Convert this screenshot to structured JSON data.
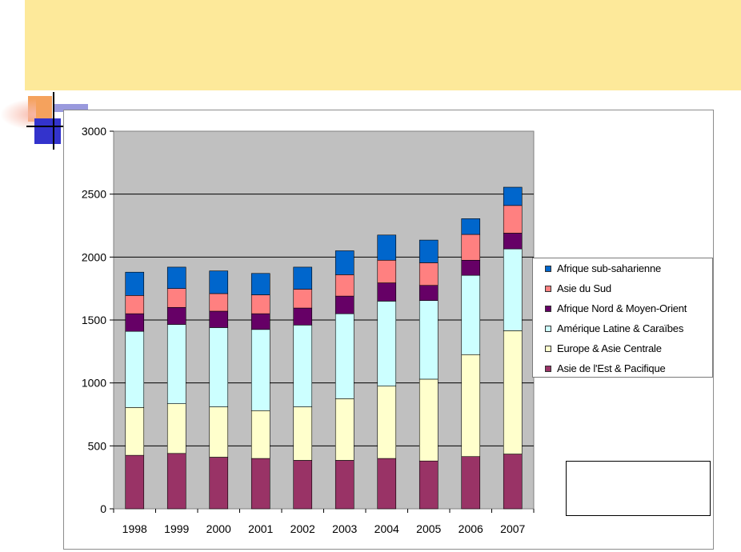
{
  "colors": {
    "banner": "#FDE99A",
    "plot_background": "#C0C0C0",
    "deco_orange": "#F5A25D",
    "deco_blue": "#3333CC"
  },
  "chart_data": {
    "type": "bar",
    "stacked": true,
    "title": "",
    "xlabel": "",
    "ylabel": "",
    "ylim": [
      0,
      3000
    ],
    "yticks": [
      0,
      500,
      1000,
      1500,
      2000,
      2500,
      3000
    ],
    "grid": true,
    "legend_position": "right",
    "categories": [
      "1998",
      "1999",
      "2000",
      "2001",
      "2002",
      "2003",
      "2004",
      "2005",
      "2006",
      "2007"
    ],
    "series": [
      {
        "name": "Asie de l'Est & Pacifique",
        "color": "#993366",
        "values": [
          425,
          440,
          410,
          400,
          385,
          385,
          400,
          380,
          415,
          435
        ]
      },
      {
        "name": "Europe & Asie Centrale",
        "color": "#FFFFCC",
        "values": [
          380,
          395,
          400,
          380,
          425,
          490,
          575,
          650,
          810,
          980
        ]
      },
      {
        "name": "Amérique Latine & Caraïbes",
        "color": "#CCFFFF",
        "values": [
          605,
          630,
          630,
          645,
          650,
          675,
          675,
          625,
          630,
          650
        ]
      },
      {
        "name": "Afrique Nord & Moyen-Orient",
        "color": "#660066",
        "values": [
          140,
          135,
          130,
          125,
          135,
          140,
          145,
          120,
          120,
          125
        ]
      },
      {
        "name": "Asie du Sud",
        "color": "#FF8080",
        "values": [
          145,
          150,
          140,
          150,
          150,
          170,
          180,
          180,
          205,
          220
        ]
      },
      {
        "name": "Afrique sub-saharienne",
        "color": "#0066CC",
        "values": [
          185,
          170,
          180,
          170,
          175,
          190,
          200,
          180,
          125,
          145
        ]
      }
    ]
  }
}
